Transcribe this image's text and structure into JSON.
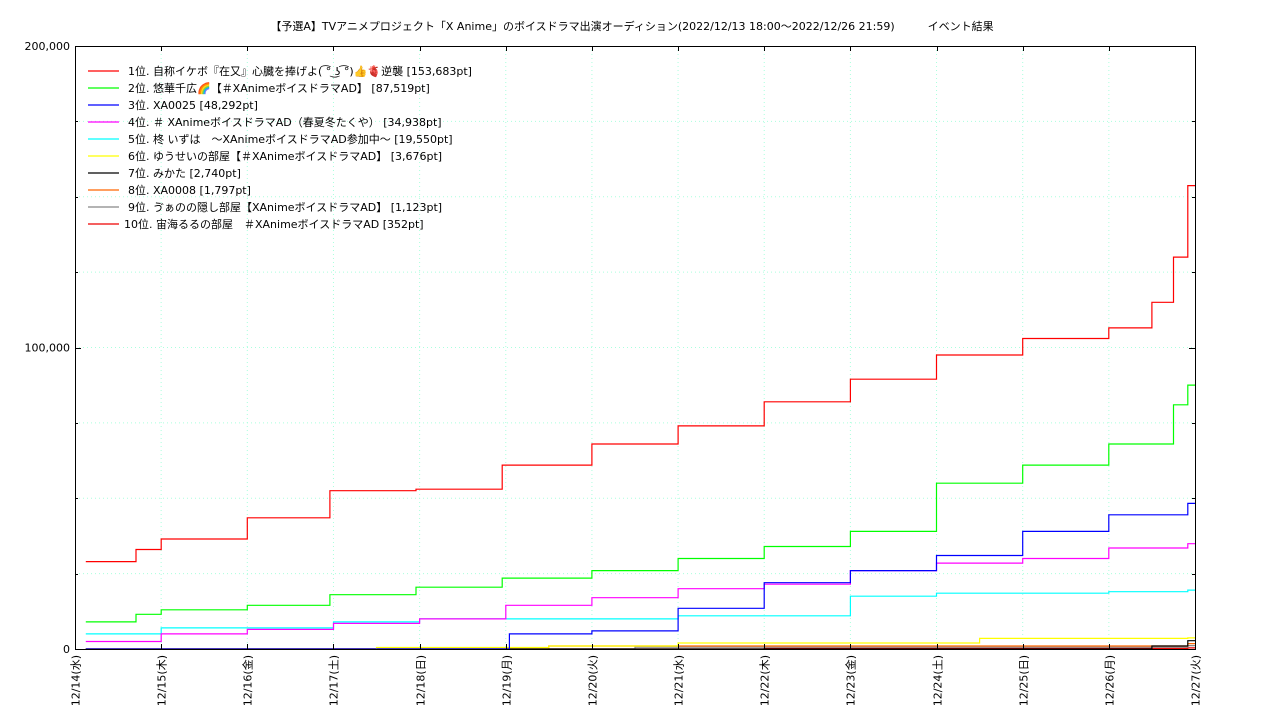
{
  "chart_data": {
    "type": "line",
    "title": "【予選A】TVアニメプロジェクト「X Anime」のボイスドラマ出演オーディション(2022/12/13 18:00～2022/12/26 21:59)　　　イベント結果",
    "xlabel": "",
    "ylabel": "",
    "ylim": [
      0,
      200000
    ],
    "xlim": [
      "2022-12-14",
      "2022-12-27"
    ],
    "y_ticks": [
      "0",
      "100,000",
      "200,000"
    ],
    "x_ticks": [
      "12/14(水)",
      "12/15(木)",
      "12/16(金)",
      "12/17(土)",
      "12/18(日)",
      "12/19(月)",
      "12/20(火)",
      "12/21(水)",
      "12/22(木)",
      "12/23(金)",
      "12/24(土)",
      "12/25(日)",
      "12/26(月)",
      "12/27(火)"
    ],
    "grid": true,
    "legend_position": "top-left",
    "x_dates": [
      "2022-12-14",
      "2022-12-15",
      "2022-12-16",
      "2022-12-17",
      "2022-12-18",
      "2022-12-19",
      "2022-12-20",
      "2022-12-21",
      "2022-12-22",
      "2022-12-23",
      "2022-12-24",
      "2022-12-25",
      "2022-12-26",
      "2022-12-27"
    ],
    "series": [
      {
        "name": "1位. 自称イケボ『在又』心臓を捧げよ( ͡° ͜ʖ ͡°)👍🫀逆襲 [153,683pt]",
        "color": "#ff0000",
        "x": [
          "2022-12-14 03:00",
          "2022-12-14 17:00",
          "2022-12-15 00:00",
          "2022-12-16 00:00",
          "2022-12-16 23:00",
          "2022-12-17 23:00",
          "2022-12-18 23:00",
          "2022-12-20 00:00",
          "2022-12-21 00:00",
          "2022-12-22 00:00",
          "2022-12-23 00:00",
          "2022-12-24 00:00",
          "2022-12-25 00:00",
          "2022-12-26 00:00",
          "2022-12-26 12:00",
          "2022-12-26 18:00",
          "2022-12-26 22:00"
        ],
        "values": [
          29000,
          33000,
          36500,
          43500,
          52500,
          53000,
          61000,
          68000,
          74000,
          82000,
          89500,
          97500,
          103000,
          106500,
          115000,
          130000,
          153683
        ]
      },
      {
        "name": "2位. 悠華千広🌈【＃XAnimeボイスドラマAD】 [87,519pt]",
        "color": "#00ff00",
        "x": [
          "2022-12-14 03:00",
          "2022-12-14 17:00",
          "2022-12-15 00:00",
          "2022-12-16 00:00",
          "2022-12-16 23:00",
          "2022-12-17 23:00",
          "2022-12-18 23:00",
          "2022-12-20 00:00",
          "2022-12-21 00:00",
          "2022-12-22 00:00",
          "2022-12-23 00:00",
          "2022-12-24 00:00",
          "2022-12-25 00:00",
          "2022-12-26 00:00",
          "2022-12-26 18:00",
          "2022-12-26 22:00"
        ],
        "values": [
          9000,
          11500,
          13000,
          14500,
          18000,
          20500,
          23500,
          26000,
          30000,
          34000,
          39000,
          55000,
          61000,
          68000,
          81000,
          87519
        ]
      },
      {
        "name": "3位. XA0025 [48,292pt]",
        "color": "#0000ff",
        "x": [
          "2022-12-14 03:00",
          "2022-12-18 23:00",
          "2022-12-19 01:00",
          "2022-12-20 00:00",
          "2022-12-21 00:00",
          "2022-12-22 00:00",
          "2022-12-23 00:00",
          "2022-12-24 00:00",
          "2022-12-25 00:00",
          "2022-12-26 00:00",
          "2022-12-26 22:00"
        ],
        "values": [
          0,
          0,
          5000,
          6000,
          13500,
          22000,
          26000,
          31000,
          39000,
          44500,
          48292
        ]
      },
      {
        "name": "4位. ＃ XAnimeボイスドラマAD（春夏冬たくや） [34,938pt]",
        "color": "#ff00ff",
        "x": [
          "2022-12-14 03:00",
          "2022-12-15 00:00",
          "2022-12-16 00:00",
          "2022-12-17 00:00",
          "2022-12-18 00:00",
          "2022-12-19 00:00",
          "2022-12-20 00:00",
          "2022-12-21 00:00",
          "2022-12-22 00:00",
          "2022-12-23 00:00",
          "2022-12-24 00:00",
          "2022-12-25 00:00",
          "2022-12-26 00:00",
          "2022-12-26 22:00"
        ],
        "values": [
          2500,
          5000,
          6500,
          8500,
          10000,
          14500,
          17000,
          20000,
          21500,
          26000,
          28500,
          30000,
          33500,
          34938
        ]
      },
      {
        "name": "5位. 柊 いずは　～XAnimeボイスドラマAD参加中～ [19,550pt]",
        "color": "#00ffff",
        "x": [
          "2022-12-14 03:00",
          "2022-12-15 00:00",
          "2022-12-17 00:00",
          "2022-12-18 00:00",
          "2022-12-21 00:00",
          "2022-12-23 00:00",
          "2022-12-24 00:00",
          "2022-12-26 00:00",
          "2022-12-26 22:00"
        ],
        "values": [
          5000,
          7000,
          9000,
          10000,
          11000,
          17500,
          18500,
          19000,
          19550
        ]
      },
      {
        "name": "6位. ゆうせいの部屋【＃XAnimeボイスドラマAD】 [3,676pt]",
        "color": "#ffff00",
        "x": [
          "2022-12-14 03:00",
          "2022-12-17 12:00",
          "2022-12-19 12:00",
          "2022-12-21 00:00",
          "2022-12-24 12:00",
          "2022-12-26 22:00"
        ],
        "values": [
          0,
          500,
          1000,
          2000,
          3500,
          3676
        ]
      },
      {
        "name": "7位. みかた [2,740pt]",
        "color": "#000000",
        "x": [
          "2022-12-14 03:00",
          "2022-12-26 12:00",
          "2022-12-26 22:00"
        ],
        "values": [
          0,
          1000,
          2740
        ]
      },
      {
        "name": "8位. XA0008 [1,797pt]",
        "color": "#ff6600",
        "x": [
          "2022-12-14 03:00",
          "2022-12-19 12:00",
          "2022-12-26 22:00"
        ],
        "values": [
          0,
          1000,
          1797
        ]
      },
      {
        "name": "9位. ゔぁのの隠し部屋【XAnimeボイスドラマAD】 [1,123pt]",
        "color": "#888888",
        "x": [
          "2022-12-14 03:00",
          "2022-12-20 12:00",
          "2022-12-26 22:00"
        ],
        "values": [
          0,
          600,
          1123
        ]
      },
      {
        "name": "10位. 宙海るるの部屋　＃XAnimeボイスドラマAD [352pt]",
        "color": "#ee0000",
        "x": [
          "2022-12-14 03:00",
          "2022-12-22 00:00",
          "2022-12-26 22:00"
        ],
        "values": [
          0,
          200,
          352
        ]
      }
    ]
  }
}
